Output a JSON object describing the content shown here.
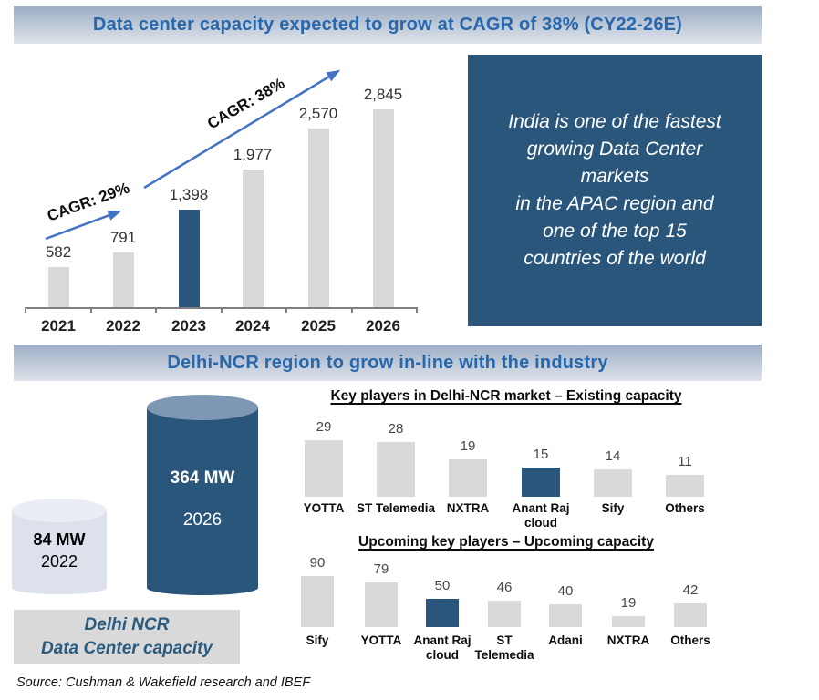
{
  "colors": {
    "accent_blue": "#2a567c",
    "bar_gray": "#d9d9d9",
    "header_text_blue": "#2767ab",
    "arrow_blue": "#4472c4",
    "cylinder_top_blue": "#7e97b4",
    "cylinder_small_body": "#dce1eb",
    "cylinder_small_top": "#eaedf4",
    "caption_box_gray": "#d9d9d9"
  },
  "headers": {
    "capacity": "Data center capacity expected to grow at CAGR of 38% (CY22-26E)",
    "delhi": "Delhi-NCR region to grow in-line with the industry"
  },
  "india_box": {
    "text": "India is one of the fastest\ngrowing Data Center\nmarkets\nin the APAC region and\none of the top 15\ncountries of the world"
  },
  "delhi_capacity": {
    "small": {
      "value": "84 MW",
      "year": "2022"
    },
    "large": {
      "value": "364 MW",
      "year": "2026"
    },
    "caption": "Delhi NCR\nData Center capacity"
  },
  "source": {
    "text": "Source: Cushman & Wakefield research and IBEF"
  },
  "chart_data": [
    {
      "id": "india-data-center-capacity",
      "type": "bar",
      "title": "Data center capacity expected to grow at CAGR of 38% (CY22-26E)",
      "categories": [
        "2021",
        "2022",
        "2023",
        "2024",
        "2025",
        "2026"
      ],
      "values": [
        582,
        791,
        1398,
        1977,
        2570,
        2845
      ],
      "value_labels": [
        "582",
        "791",
        "1,398",
        "1,977",
        "2,570",
        "2,845"
      ],
      "highlight_index": 2,
      "bar_color": "#d9d9d9",
      "highlight_color": "#2a567c",
      "grid": false,
      "legend": false,
      "annotations": [
        {
          "label": "CAGR: 29%"
        },
        {
          "label": "CAGR: 38%"
        }
      ]
    },
    {
      "id": "delhi-ncr-existing-capacity",
      "type": "bar",
      "title": "Key players in Delhi-NCR market – Existing capacity",
      "categories": [
        "YOTTA",
        "ST Telemedia",
        "NXTRA",
        "Anant Raj\ncloud",
        "Sify",
        "Others"
      ],
      "values": [
        29,
        28,
        19,
        15,
        14,
        11
      ],
      "value_labels": [
        "29",
        "28",
        "19",
        "15",
        "14",
        "11"
      ],
      "highlight_index": 3,
      "bar_color": "#d9d9d9",
      "highlight_color": "#2a567c",
      "grid": false,
      "legend": false
    },
    {
      "id": "delhi-ncr-upcoming-capacity",
      "type": "bar",
      "title": "Upcoming key players – Upcoming capacity",
      "categories": [
        "Sify",
        "YOTTA",
        "Anant Raj\ncloud",
        "ST\nTelemedia",
        "Adani",
        "NXTRA",
        "Others"
      ],
      "values": [
        90,
        79,
        50,
        46,
        40,
        19,
        42
      ],
      "value_labels": [
        "90",
        "79",
        "50",
        "46",
        "40",
        "19",
        "42"
      ],
      "highlight_index": 2,
      "bar_color": "#d9d9d9",
      "highlight_color": "#2a567c",
      "grid": false,
      "legend": false
    }
  ]
}
